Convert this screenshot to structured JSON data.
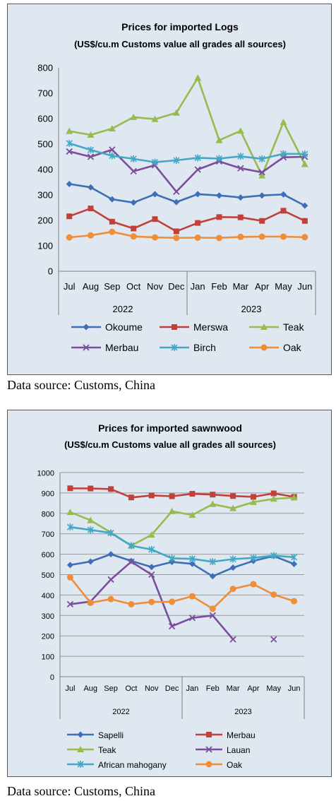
{
  "source_note": "Data source: Customs, China",
  "chart_data": [
    {
      "type": "line",
      "title": "Prices for imported Logs",
      "subtitle": "(US$/cu.m Customs value all grades all sources)",
      "categories": [
        "Jul",
        "Aug",
        "Sep",
        "Oct",
        "Nov",
        "Dec",
        "Jan",
        "Feb",
        "Mar",
        "Apr",
        "May",
        "Jun"
      ],
      "year_groups": [
        {
          "label": "2022",
          "count": 6
        },
        {
          "label": "2023",
          "count": 6
        }
      ],
      "ylim": [
        0,
        800
      ],
      "yticks": [
        "0",
        "100",
        "200",
        "300",
        "400",
        "500",
        "600",
        "700",
        "800"
      ],
      "grid": false,
      "legend_position": "bottom",
      "series": [
        {
          "name": "Okoume",
          "color": "#3e6fb5",
          "marker": "diamond",
          "values": [
            343,
            330,
            283,
            270,
            303,
            272,
            303,
            298,
            290,
            298,
            302,
            258
          ]
        },
        {
          "name": "Merswa",
          "color": "#c0413c",
          "marker": "square",
          "values": [
            216,
            247,
            195,
            168,
            205,
            157,
            190,
            213,
            212,
            198,
            238,
            198
          ]
        },
        {
          "name": "Teak",
          "color": "#96bb4f",
          "marker": "triangle",
          "values": [
            551,
            536,
            561,
            606,
            598,
            623,
            760,
            515,
            552,
            376,
            586,
            421
          ]
        },
        {
          "name": "Merbau",
          "color": "#7a4e9a",
          "marker": "x",
          "values": [
            471,
            450,
            478,
            393,
            417,
            313,
            400,
            432,
            405,
            389,
            448,
            450
          ]
        },
        {
          "name": "Birch",
          "color": "#42a8c6",
          "marker": "star",
          "values": [
            503,
            477,
            454,
            442,
            429,
            436,
            446,
            443,
            452,
            442,
            462,
            461
          ]
        },
        {
          "name": "Oak",
          "color": "#ef8d39",
          "marker": "circle",
          "values": [
            133,
            141,
            155,
            137,
            133,
            131,
            132,
            131,
            135,
            136,
            136,
            134
          ]
        }
      ]
    },
    {
      "type": "line",
      "title": "Prices for imported sawnwood",
      "subtitle": "(US$/cu.m Customs value all grades all sources)",
      "categories": [
        "Jul",
        "Aug",
        "Sep",
        "Oct",
        "Nov",
        "Dec",
        "Jan",
        "Feb",
        "Mar",
        "Apr",
        "May",
        "Jun"
      ],
      "year_groups": [
        {
          "label": "2022",
          "count": 6
        },
        {
          "label": "2023",
          "count": 6
        }
      ],
      "ylim": [
        0,
        1000
      ],
      "yticks": [
        "0",
        "100",
        "200",
        "300",
        "400",
        "500",
        "600",
        "700",
        "800",
        "900",
        "1000"
      ],
      "grid": true,
      "legend_position": "bottom",
      "series": [
        {
          "name": "Sapelli",
          "color": "#3e6fb5",
          "marker": "diamond",
          "values": [
            547,
            564,
            600,
            567,
            537,
            562,
            553,
            492,
            534,
            567,
            591,
            552
          ]
        },
        {
          "name": "Merbau",
          "color": "#c0413c",
          "marker": "square",
          "values": [
            923,
            922,
            919,
            878,
            888,
            884,
            896,
            892,
            885,
            881,
            898,
            881
          ]
        },
        {
          "name": "Teak",
          "color": "#96bb4f",
          "marker": "triangle",
          "values": [
            806,
            766,
            706,
            642,
            695,
            810,
            792,
            845,
            825,
            855,
            871,
            877
          ]
        },
        {
          "name": "Lauan",
          "color": "#7a4e9a",
          "marker": "x",
          "values": [
            355,
            368,
            476,
            563,
            500,
            247,
            288,
            300,
            183,
            null,
            183,
            null
          ]
        },
        {
          "name": "African mahogany",
          "color": "#42a8c6",
          "marker": "star",
          "values": [
            733,
            719,
            704,
            642,
            623,
            580,
            577,
            563,
            576,
            582,
            593,
            585
          ]
        },
        {
          "name": "Oak",
          "color": "#ef8d39",
          "marker": "circle",
          "values": [
            487,
            362,
            380,
            355,
            366,
            367,
            394,
            333,
            430,
            453,
            402,
            370
          ]
        }
      ]
    }
  ]
}
